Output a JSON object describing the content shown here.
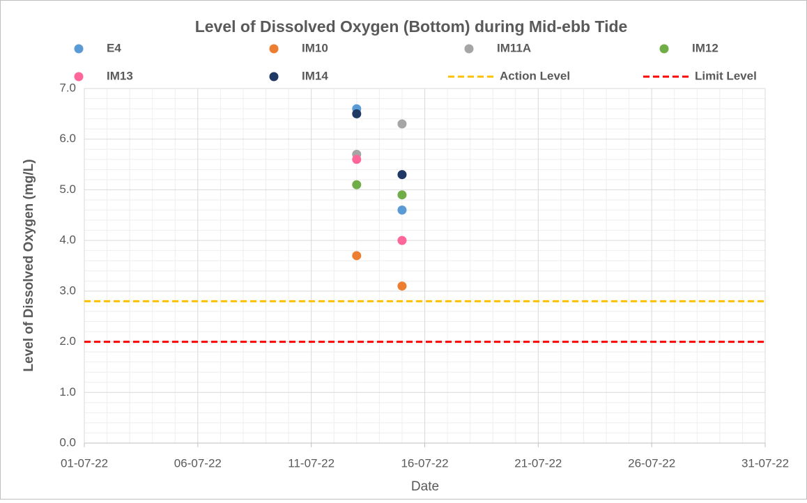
{
  "chart_data": {
    "type": "scatter",
    "title": "Level of Dissolved Oxygen (Bottom) during Mid-ebb Tide",
    "x_label": "Date",
    "y_label": "Level of Dissolved Oxygen (mg/L)",
    "x": [
      "13-07-22",
      "15-07-22"
    ],
    "series": [
      {
        "name": "E4",
        "color": "#5b9bd5",
        "values": [
          6.6,
          4.6
        ]
      },
      {
        "name": "IM10",
        "color": "#ed7d31",
        "values": [
          3.7,
          3.1
        ]
      },
      {
        "name": "IM11A",
        "color": "#a5a5a5",
        "values": [
          5.7,
          6.3
        ]
      },
      {
        "name": "IM12",
        "color": "#70ad47",
        "values": [
          5.1,
          4.9
        ]
      },
      {
        "name": "IM13",
        "color": "#ff6699",
        "values": [
          5.6,
          4.0
        ]
      },
      {
        "name": "IM14",
        "color": "#1f3864",
        "values": [
          6.5,
          5.3
        ]
      }
    ],
    "reference_lines": [
      {
        "name": "Action Level",
        "color": "#ffc000",
        "value": 2.8
      },
      {
        "name": "Limit Level",
        "color": "#ff0000",
        "value": 2.0
      }
    ],
    "xlim": [
      "01-07-22",
      "31-07-22"
    ],
    "xticks": [
      "01-07-22",
      "06-07-22",
      "11-07-22",
      "16-07-22",
      "21-07-22",
      "26-07-22",
      "31-07-22"
    ],
    "ylim": [
      0,
      7
    ],
    "yticks": [
      {
        "value": 0,
        "label": "0.0"
      },
      {
        "value": 1,
        "label": "1.0"
      },
      {
        "value": 2,
        "label": "2.0"
      },
      {
        "value": 3,
        "label": "3.0"
      },
      {
        "value": 4,
        "label": "4.0"
      },
      {
        "value": 5,
        "label": "5.0"
      },
      {
        "value": 6,
        "label": "6.0"
      },
      {
        "value": 7,
        "label": "7.0"
      }
    ],
    "grid": true,
    "minor_grid": true,
    "legend": "top"
  }
}
